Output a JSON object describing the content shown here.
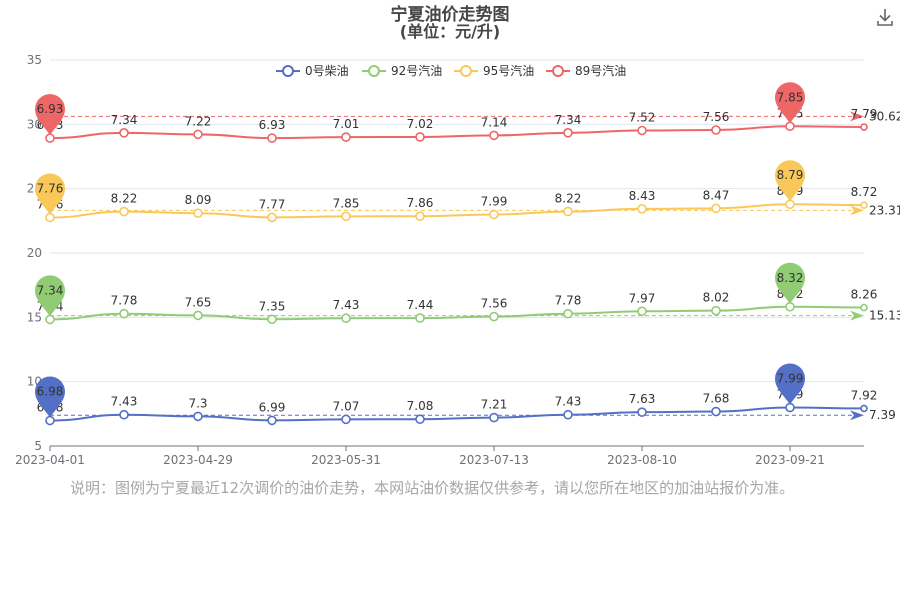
{
  "title": "宁夏油价走势图",
  "subtitle": "(单位：元/升)",
  "note": "说明：图例为宁夏最近12次调价的油价走势，本网站油价数据仅供参考，请以您所在地区的加油站报价为准。",
  "download_icon": "download-icon",
  "chart_data": {
    "type": "line",
    "title": "宁夏油价走势图",
    "subtitle": "(单位：元/升)",
    "x_ticks": [
      "2023-04-01",
      "2023-04-29",
      "2023-05-31",
      "2023-07-13",
      "2023-08-10",
      "2023-09-21"
    ],
    "x_tick_index": [
      0,
      2,
      4,
      6,
      8,
      10
    ],
    "y_ticks": [
      "5",
      "10",
      "15",
      "20",
      "25",
      "30",
      "35"
    ],
    "ylim": [
      5,
      35
    ],
    "grid": true,
    "legend_position": "top",
    "series": [
      {
        "name": "0号柴油",
        "color": "#5470c6",
        "values": [
          6.98,
          7.43,
          7.3,
          6.99,
          7.07,
          7.08,
          7.21,
          7.43,
          7.63,
          7.68,
          7.99,
          7.92
        ],
        "max_label": "7.99",
        "min_label": "6.98",
        "average_label": "7.39",
        "average_value": 7.39
      },
      {
        "name": "92号汽油",
        "color": "#91cc75",
        "values": [
          7.34,
          7.78,
          7.65,
          7.35,
          7.43,
          7.44,
          7.56,
          7.78,
          7.97,
          8.02,
          8.32,
          8.26
        ],
        "max_label": "8.32",
        "min_label": "7.34",
        "average_label": "15.13",
        "average_value": 15.13
      },
      {
        "name": "95号汽油",
        "color": "#fac858",
        "values": [
          7.76,
          8.22,
          8.09,
          7.77,
          7.85,
          7.86,
          7.99,
          8.22,
          8.43,
          8.47,
          8.79,
          8.72
        ],
        "max_label": "8.79",
        "min_label": "7.76",
        "average_label": "23.31",
        "average_value": 23.31
      },
      {
        "name": "89号汽油",
        "color": "#ee6666",
        "values": [
          6.93,
          7.34,
          7.22,
          6.93,
          7.01,
          7.02,
          7.14,
          7.34,
          7.52,
          7.56,
          7.85,
          7.79
        ],
        "max_label": "7.85",
        "min_label": "6.93",
        "average_label": "30.62",
        "average_value": 30.62
      }
    ]
  }
}
